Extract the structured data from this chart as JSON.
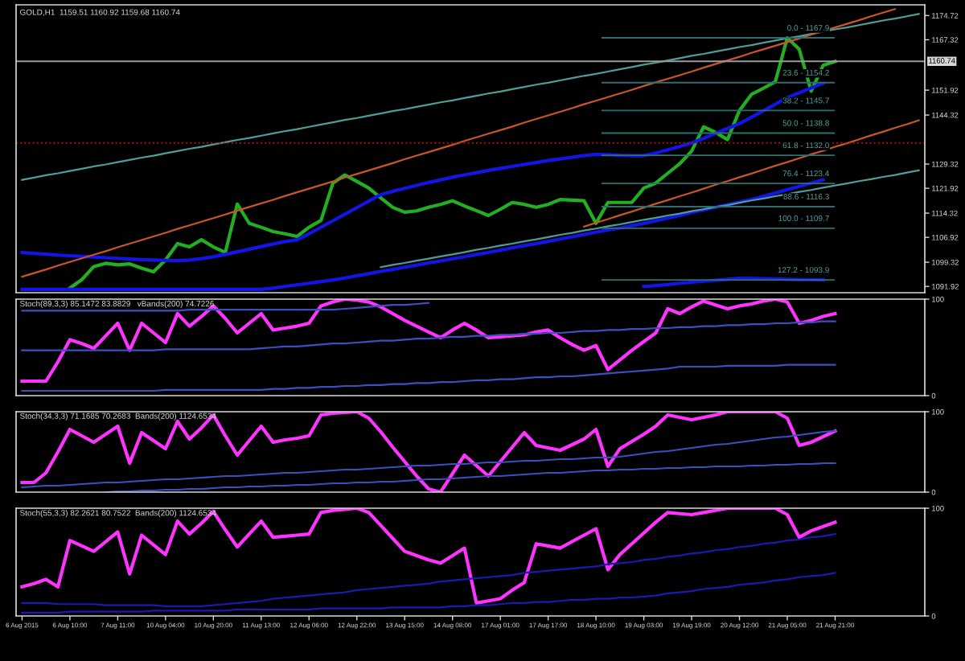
{
  "chart_data": [
    {
      "type": "line",
      "title": "GOLD,H1  1159.51 1160.92 1159.68 1160.74",
      "ylim": [
        1090,
        1178
      ],
      "categories": [
        null,
        null,
        null,
        null,
        null,
        null,
        null,
        null,
        null,
        null,
        null,
        null,
        null,
        null,
        null,
        null,
        null,
        null,
        null,
        null,
        null,
        null,
        null,
        null,
        null,
        null,
        null,
        null,
        null,
        null,
        null,
        null,
        null,
        null,
        null,
        null,
        null,
        null,
        null,
        null,
        null,
        null,
        null,
        null,
        null,
        null,
        null,
        null,
        null,
        null,
        null,
        null,
        null,
        null,
        null,
        null,
        null,
        null,
        null,
        null,
        null,
        null,
        null,
        null,
        null,
        null,
        null,
        null,
        null,
        null,
        null,
        null,
        null,
        null,
        null,
        null
      ],
      "yticks": [
        1091.92,
        1099.32,
        1106.92,
        1114.32,
        1121.92,
        1129.32,
        1144.32,
        1151.92,
        1167.32,
        1174.72
      ],
      "tick_labels": "y",
      "series": [
        {
          "color": "#22b022",
          "values": [
            null,
            null,
            null,
            null,
            1091.4,
            1094.0,
            1098.0,
            1099.0,
            1098.5,
            1098.8,
            1097.5,
            1096.4,
            1100.0,
            1105.0,
            1104.0,
            1106.2,
            1104.0,
            1102.3,
            1117.1,
            1111.2,
            1110.0,
            1108.7,
            1108.0,
            1107.2,
            1110.0,
            1112.1,
            1123.5,
            1126.0,
            1124.0,
            1122.0,
            1119.0,
            1116.1,
            1114.6,
            1115.0,
            1116.1,
            1117.0,
            1118.1,
            1116.5,
            1115.1,
            1113.6,
            1115.5,
            1117.6,
            1117.0,
            1116.1,
            1117.0,
            1118.5,
            1118.3,
            1118.1,
            1111.2,
            1117.6,
            1117.6,
            1117.6,
            1122.0,
            1123.5,
            1126.5,
            1129.4,
            1133.3,
            1140.7,
            1139.0,
            1136.8,
            1145.7,
            1150.6,
            1152.5,
            1154.5,
            1167.9,
            1164.4,
            1151.6,
            1159.5,
            1160.7,
            null,
            null,
            null,
            null,
            null,
            null,
            null
          ]
        },
        {
          "color": "#1414e6",
          "values": [
            1102.3,
            1102.0,
            1101.8,
            1101.5,
            1101.3,
            1101.1,
            1100.9,
            1100.7,
            1100.5,
            1100.3,
            1100.1,
            1100.0,
            1099.9,
            1099.8,
            1100.0,
            1100.4,
            1101.0,
            1101.7,
            1102.5,
            1103.3,
            1104.1,
            1104.9,
            1105.6,
            1106.2,
            1108.0,
            1110.0,
            1112.0,
            1114.0,
            1116.0,
            1118.0,
            1120.0,
            1121.0,
            1121.9,
            1122.8,
            1123.7,
            1124.5,
            1125.3,
            1126.0,
            1126.7,
            1127.4,
            1128.0,
            1128.6,
            1129.2,
            1129.8,
            1130.4,
            1130.9,
            1131.4,
            1131.9,
            1132.3,
            1132.2,
            1132.0,
            1131.9,
            1131.9,
            1132.7,
            1133.7,
            1134.7,
            1135.8,
            1137.2,
            1138.7,
            1140.2,
            1141.7,
            1143.6,
            1145.6,
            1147.6,
            1149.6,
            1151.1,
            1152.6,
            1154.0,
            null,
            null,
            null,
            null,
            null,
            null,
            null,
            null
          ]
        },
        {
          "color": "#1414e6",
          "values": [
            1091.0,
            1091.0,
            1091.0,
            1091.0,
            1091.0,
            1091.0,
            1091.0,
            1091.0,
            1091.0,
            1091.0,
            1091.0,
            1091.0,
            1091.0,
            1091.0,
            1091.0,
            1091.0,
            1091.0,
            1091.0,
            1091.0,
            1091.0,
            1091.0,
            1091.4,
            1091.9,
            1092.4,
            1092.9,
            1093.4,
            1093.9,
            1094.5,
            1095.2,
            1095.8,
            1096.5,
            1097.1,
            1097.8,
            1098.4,
            1099.1,
            1099.7,
            1100.4,
            1101.0,
            1101.7,
            1102.3,
            1103.0,
            1103.7,
            1104.4,
            1105.0,
            1105.7,
            1106.4,
            1107.1,
            1107.8,
            1108.5,
            1109.2,
            1109.8,
            1110.5,
            1111.2,
            1112.0,
            1112.8,
            1113.6,
            1114.5,
            1115.3,
            1116.1,
            1116.9,
            1117.7,
            1118.5,
            1119.5,
            1120.5,
            1121.5,
            1122.5,
            1123.5,
            1124.5,
            null,
            null,
            null,
            null,
            null,
            null,
            null,
            null
          ]
        },
        {
          "color": "#1414e6",
          "values": [
            null,
            null,
            null,
            null,
            null,
            null,
            null,
            null,
            null,
            null,
            null,
            null,
            null,
            null,
            null,
            null,
            null,
            null,
            null,
            null,
            null,
            null,
            null,
            null,
            null,
            null,
            null,
            null,
            null,
            null,
            null,
            null,
            null,
            null,
            null,
            null,
            null,
            null,
            null,
            null,
            null,
            null,
            null,
            null,
            null,
            null,
            null,
            null,
            null,
            null,
            null,
            null,
            1091.9,
            1092.2,
            1092.5,
            1092.9,
            1093.2,
            1093.5,
            1093.8,
            1094.1,
            1094.4,
            1094.4,
            1094.3,
            1094.2,
            1094.1,
            1094.0,
            1094.0,
            1093.9,
            null,
            null,
            null,
            null,
            null,
            null,
            null,
            null
          ]
        },
        {
          "color": "#4f9d98",
          "values": [
            1124.5,
            1125.2,
            1125.9,
            1126.5,
            1127.2,
            1127.9,
            1128.6,
            1129.2,
            1129.9,
            1130.6,
            1131.3,
            1131.9,
            1132.6,
            1133.3,
            1134.0,
            1134.6,
            1135.3,
            1136.0,
            1136.7,
            1137.3,
            1138.0,
            1138.7,
            1139.4,
            1140.0,
            1140.7,
            1141.4,
            1142.1,
            1142.8,
            1143.4,
            1144.1,
            1144.8,
            1145.5,
            1146.1,
            1146.8,
            1147.5,
            1148.2,
            1148.8,
            1149.5,
            1150.2,
            1150.9,
            1151.5,
            1152.2,
            1152.9,
            1153.6,
            1154.2,
            1154.9,
            1155.6,
            1156.3,
            1156.9,
            1157.6,
            1158.3,
            1159.0,
            1159.7,
            1160.3,
            1161.0,
            1161.7,
            1162.4,
            1163.0,
            1163.7,
            1164.4,
            1165.1,
            1165.7,
            1166.4,
            1167.1,
            1167.8,
            1168.4,
            1169.1,
            1169.8,
            1170.5,
            1171.1,
            1171.8,
            1172.5,
            1173.2,
            1173.8,
            1174.5,
            1175.2
          ]
        },
        {
          "color": "#4f9d98",
          "values": [
            null,
            null,
            null,
            null,
            null,
            null,
            null,
            null,
            null,
            null,
            null,
            null,
            null,
            null,
            null,
            null,
            null,
            null,
            null,
            null,
            null,
            null,
            null,
            null,
            null,
            null,
            null,
            null,
            null,
            null,
            1097.8,
            1098.5,
            1099.1,
            1099.8,
            1100.4,
            1101.1,
            1101.7,
            1102.4,
            1103.1,
            1103.7,
            1104.4,
            1105.0,
            1105.7,
            1106.3,
            1107.0,
            1107.7,
            1108.3,
            1109.0,
            1109.6,
            1110.3,
            1110.9,
            1111.6,
            1112.3,
            1112.9,
            1113.6,
            1114.2,
            1114.9,
            1115.5,
            1116.2,
            1116.8,
            1117.5,
            1118.2,
            1118.8,
            1119.5,
            1120.1,
            1120.8,
            1121.4,
            1122.1,
            1122.8,
            1123.4,
            1124.1,
            1124.7,
            1125.4,
            1126.0,
            1126.7,
            1127.4
          ]
        },
        {
          "color": "#c8552d",
          "values": [
            1094.9,
            1096.0,
            1097.1,
            1098.3,
            1099.4,
            1100.5,
            1101.6,
            1102.7,
            1103.9,
            1105.0,
            1106.1,
            1107.2,
            1108.3,
            1109.5,
            1110.6,
            1111.7,
            1112.8,
            1113.9,
            1115.1,
            1116.2,
            1117.3,
            1118.4,
            1119.6,
            1120.7,
            1121.8,
            1122.9,
            1124.0,
            1125.2,
            1126.3,
            1127.4,
            1128.5,
            1129.6,
            1130.8,
            1131.9,
            1133.0,
            1134.1,
            1135.2,
            1136.4,
            1137.5,
            1138.6,
            1139.7,
            1140.8,
            1142.0,
            1143.1,
            1144.2,
            1145.3,
            1146.4,
            1147.6,
            1148.7,
            1149.8,
            1150.9,
            1152.0,
            1153.2,
            1154.3,
            1155.4,
            1156.5,
            1157.6,
            1158.8,
            1159.9,
            1161.0,
            1162.1,
            1163.3,
            1164.4,
            1165.5,
            1166.6,
            1167.7,
            1168.9,
            1170.0,
            1171.1,
            1172.2,
            1173.3,
            1174.5,
            1175.6,
            1176.7,
            null,
            null
          ]
        },
        {
          "color": "#c8552d",
          "values": [
            null,
            null,
            null,
            null,
            null,
            null,
            null,
            null,
            null,
            null,
            null,
            null,
            null,
            null,
            null,
            null,
            null,
            null,
            null,
            null,
            null,
            null,
            null,
            null,
            null,
            null,
            null,
            null,
            null,
            null,
            null,
            null,
            null,
            null,
            null,
            null,
            null,
            null,
            null,
            null,
            null,
            null,
            null,
            null,
            null,
            null,
            null,
            1110.2,
            1111.4,
            1112.5,
            1113.7,
            1114.8,
            1116.0,
            1117.2,
            1118.3,
            1119.5,
            1120.6,
            1121.8,
            1123.0,
            1124.1,
            1125.3,
            1126.4,
            1127.6,
            1128.8,
            1129.9,
            1131.1,
            1132.3,
            1133.4,
            1134.6,
            1135.7,
            1136.9,
            1138.1,
            1139.2,
            1140.4,
            1141.5,
            1142.7
          ]
        }
      ],
      "ref_lines": [
        {
          "axis": "y",
          "value": 1160.74,
          "label": "1160.74",
          "color": "#9a9a9a",
          "line_style": "solid"
        },
        {
          "axis": "y",
          "value": 1135.8,
          "label": null,
          "color": "#b01010",
          "line_style": "dotted"
        },
        {
          "axis": "y",
          "value": 1167.9,
          "label": null,
          "color": "#2e6e6e",
          "line_style": "solid"
        },
        {
          "axis": "y",
          "value": 1154.2,
          "label": null,
          "color": "#2e6e6e",
          "line_style": "solid"
        },
        {
          "axis": "y",
          "value": 1145.7,
          "label": null,
          "color": "#2e6e6e",
          "line_style": "solid"
        },
        {
          "axis": "y",
          "value": 1138.8,
          "label": null,
          "color": "#2e6e6e",
          "line_style": "solid"
        },
        {
          "axis": "y",
          "value": 1132.0,
          "label": null,
          "color": "#2e6e6e",
          "line_style": "solid"
        },
        {
          "axis": "y",
          "value": 1123.4,
          "label": null,
          "color": "#2e6e6e",
          "line_style": "solid"
        },
        {
          "axis": "y",
          "value": 1116.3,
          "label": null,
          "color": "#2e6e6e",
          "line_style": "solid"
        },
        {
          "axis": "y",
          "value": 1109.7,
          "label": null,
          "color": "#2e6e6e",
          "line_style": "solid"
        },
        {
          "axis": "y",
          "value": 1093.9,
          "label": null,
          "color": "#2e6e6e",
          "line_style": "solid"
        }
      ],
      "annotations": [
        {
          "text": "0.0 - 1167.9",
          "y": 1167.9
        },
        {
          "text": "23.6 - 1154.2",
          "y": 1154.2
        },
        {
          "text": "38.2 - 1145.7",
          "y": 1145.7
        },
        {
          "text": "50.0 - 1138.8",
          "y": 1138.8
        },
        {
          "text": "61.8 - 1132.0",
          "y": 1132.0
        },
        {
          "text": "76.4 - 1123.4",
          "y": 1123.4
        },
        {
          "text": "88.6 - 1116.3",
          "y": 1116.3
        },
        {
          "text": "100.0 - 1109.7",
          "y": 1109.7
        },
        {
          "text": "127.2 - 1093.9",
          "y": 1093.9
        }
      ]
    },
    {
      "type": "line",
      "title": "Stoch(89,3,3) 85.1472 83.8829   vBands(200) 74.7226",
      "ylim": [
        0,
        100
      ],
      "yticks": [
        0,
        100
      ],
      "tick_labels": "y",
      "categories": [
        null,
        null,
        null,
        null,
        null,
        null,
        null,
        null,
        null,
        null,
        null,
        null,
        null,
        null,
        null,
        null,
        null,
        null,
        null,
        null,
        null,
        null,
        null,
        null,
        null,
        null,
        null,
        null,
        null,
        null,
        null,
        null,
        null,
        null,
        null,
        null,
        null,
        null,
        null,
        null,
        null,
        null,
        null,
        null,
        null,
        null,
        null,
        null,
        null,
        null,
        null,
        null,
        null,
        null,
        null,
        null,
        null,
        null,
        null,
        null,
        null,
        null,
        null,
        null,
        null,
        null,
        null,
        null,
        null,
        null,
        null,
        null,
        null,
        null,
        null,
        null
      ],
      "series": [
        {
          "color": "#ff33ff",
          "values": [
            15,
            15,
            15,
            35,
            58,
            54,
            49,
            62,
            75,
            47,
            75,
            65,
            55,
            85,
            72,
            82,
            93,
            80,
            65,
            75,
            85,
            68,
            70,
            72,
            75,
            93,
            97,
            100,
            99,
            97,
            92,
            85,
            78,
            72,
            66,
            60,
            68,
            75,
            68,
            60,
            61,
            62,
            63,
            66,
            68,
            60,
            53,
            47,
            52,
            27,
            37,
            47,
            56,
            65,
            90,
            85,
            92,
            98,
            94,
            90,
            93,
            95,
            98,
            100,
            97,
            75,
            78,
            82,
            85,
            null,
            null,
            null,
            null,
            null,
            null,
            null
          ]
        },
        {
          "color": "#3b4fc0",
          "values": [
            47,
            47,
            47,
            47,
            47,
            47,
            47,
            47,
            47,
            47,
            47,
            47,
            48,
            48,
            48,
            48,
            48,
            48,
            48,
            48,
            49,
            50,
            51,
            51,
            52,
            53,
            54,
            54,
            55,
            56,
            57,
            57,
            58,
            59,
            59,
            60,
            61,
            61,
            62,
            62,
            63,
            63,
            64,
            64,
            65,
            65,
            66,
            67,
            67,
            68,
            68,
            69,
            69,
            70,
            70,
            71,
            71,
            72,
            72,
            73,
            73,
            74,
            74,
            75,
            75,
            76,
            76,
            77,
            77,
            null,
            null,
            null,
            null,
            null,
            null,
            null
          ]
        },
        {
          "color": "#3b4fc0",
          "values": [
            5,
            5,
            5,
            5,
            5,
            5,
            5,
            5,
            5,
            5,
            5,
            5,
            6,
            6,
            6,
            6,
            6,
            6,
            6,
            6,
            6,
            7,
            7,
            8,
            8,
            9,
            9,
            10,
            10,
            11,
            11,
            12,
            12,
            13,
            13,
            14,
            14,
            15,
            16,
            16,
            17,
            17,
            18,
            19,
            19,
            20,
            20,
            21,
            22,
            23,
            24,
            25,
            26,
            27,
            28,
            30,
            30,
            30,
            30,
            31,
            31,
            31,
            31,
            31,
            32,
            32,
            32,
            32,
            32,
            null,
            null,
            null,
            null,
            null,
            null,
            null
          ]
        },
        {
          "color": "#3b4fc0",
          "values": [
            88,
            88,
            88,
            88,
            88,
            88,
            88,
            88,
            88,
            88,
            88,
            88,
            88,
            88,
            89,
            89,
            89,
            89,
            89,
            89,
            89,
            89,
            89,
            89,
            89,
            89,
            89,
            90,
            91,
            92,
            93,
            94,
            94,
            95,
            96,
            null,
            null,
            null,
            null,
            null,
            null,
            null,
            null,
            null,
            null,
            null,
            null,
            null,
            null,
            null,
            null,
            null,
            null,
            null,
            null,
            null,
            null,
            null,
            null,
            null,
            null,
            null,
            null,
            null,
            null,
            null,
            null,
            null,
            null,
            null,
            null,
            null,
            null,
            null,
            null,
            null
          ]
        }
      ]
    },
    {
      "type": "line",
      "title": "Stoch(34,3,3) 71.1685 70.2683  Bands(200) 1124.6534",
      "ylim": [
        0,
        100
      ],
      "yticks": [
        0,
        100
      ],
      "tick_labels": "y",
      "categories": [
        null,
        null,
        null,
        null,
        null,
        null,
        null,
        null,
        null,
        null,
        null,
        null,
        null,
        null,
        null,
        null,
        null,
        null,
        null,
        null,
        null,
        null,
        null,
        null,
        null,
        null,
        null,
        null,
        null,
        null,
        null,
        null,
        null,
        null,
        null,
        null,
        null,
        null,
        null,
        null,
        null,
        null,
        null,
        null,
        null,
        null,
        null,
        null,
        null,
        null,
        null,
        null,
        null,
        null,
        null,
        null,
        null,
        null,
        null,
        null,
        null,
        null,
        null,
        null,
        null,
        null,
        null,
        null,
        null,
        null,
        null,
        null,
        null,
        null,
        null,
        null
      ],
      "series": [
        {
          "color": "#ff33ff",
          "values": [
            12,
            12,
            24,
            50,
            78,
            70,
            62,
            72,
            82,
            36,
            74,
            64,
            54,
            88,
            66,
            80,
            96,
            70,
            46,
            64,
            82,
            62,
            65,
            67,
            70,
            96,
            98,
            99,
            100,
            92,
            75,
            56,
            38,
            20,
            4,
            0,
            23,
            46,
            33,
            20,
            38,
            56,
            74,
            58,
            55,
            52,
            59,
            66,
            78,
            32,
            54,
            63,
            72,
            82,
            96,
            93,
            90,
            93,
            96,
            100,
            100,
            100,
            100,
            100,
            92,
            58,
            62,
            69,
            76,
            null,
            null,
            null,
            null,
            null,
            null,
            null
          ]
        },
        {
          "color": "#3b4fc0",
          "values": [
            6,
            7,
            8,
            8,
            9,
            10,
            11,
            12,
            12,
            13,
            14,
            15,
            16,
            16,
            17,
            18,
            19,
            20,
            20,
            21,
            22,
            23,
            24,
            24,
            25,
            26,
            27,
            28,
            28,
            29,
            30,
            31,
            32,
            33,
            33,
            34,
            35,
            35,
            36,
            37,
            37,
            38,
            39,
            39,
            40,
            41,
            41,
            42,
            43,
            43,
            44,
            46,
            48,
            50,
            51,
            53,
            55,
            57,
            59,
            60,
            62,
            64,
            66,
            68,
            69,
            71,
            73,
            75,
            76,
            null,
            null,
            null,
            null,
            null,
            null,
            null
          ]
        },
        {
          "color": "#3b4fc0",
          "values": [
            null,
            null,
            null,
            null,
            null,
            null,
            null,
            0,
            1,
            1,
            2,
            2,
            3,
            3,
            4,
            4,
            5,
            6,
            6,
            7,
            7,
            8,
            8,
            9,
            9,
            10,
            11,
            11,
            12,
            12,
            13,
            13,
            14,
            15,
            16,
            16,
            17,
            18,
            19,
            20,
            20,
            21,
            22,
            23,
            24,
            24,
            25,
            26,
            27,
            27,
            28,
            28,
            29,
            29,
            30,
            30,
            31,
            31,
            32,
            32,
            32,
            33,
            33,
            34,
            34,
            35,
            35,
            36,
            36,
            null,
            null,
            null,
            null,
            null,
            null,
            null
          ]
        }
      ]
    },
    {
      "type": "line",
      "title": "Stoch(55,3,3) 82.2621 80.7522  Bands(200) 1124.6534",
      "ylim": [
        0,
        100
      ],
      "yticks": [
        0,
        100
      ],
      "categories": [
        "6 Aug 2015",
        null,
        null,
        null,
        "6 Aug 10:00",
        null,
        null,
        null,
        "7 Aug 11:00",
        null,
        null,
        null,
        "10 Aug 04:00",
        null,
        null,
        null,
        "10 Aug 20:00",
        null,
        null,
        null,
        "11 Aug 13:00",
        null,
        null,
        null,
        "12 Aug 06:00",
        null,
        null,
        null,
        "12 Aug 22:00",
        null,
        null,
        null,
        "13 Aug 15:00",
        null,
        null,
        null,
        "14 Aug 08:00",
        null,
        null,
        null,
        "17 Aug 01:00",
        null,
        null,
        null,
        "17 Aug 17:00",
        null,
        null,
        null,
        "18 Aug 10:00",
        null,
        null,
        null,
        "19 Aug 03:00",
        null,
        null,
        null,
        "19 Aug 19:00",
        null,
        null,
        null,
        "20 Aug 12:00",
        null,
        null,
        null,
        "21 Aug 05:00",
        null,
        null,
        null,
        "21 Aug 21:00",
        null,
        null,
        null,
        null,
        null,
        null,
        null
      ],
      "series": [
        {
          "color": "#ff33ff",
          "values": [
            27,
            30,
            34,
            27,
            70,
            65,
            60,
            69,
            78,
            39,
            75,
            66,
            57,
            88,
            76,
            86,
            97,
            80,
            64,
            76,
            88,
            73,
            74,
            75,
            76,
            96,
            98,
            99,
            100,
            96,
            84,
            72,
            60,
            56,
            52,
            49,
            56,
            63,
            12,
            14,
            16,
            24,
            31,
            67,
            65,
            63,
            69,
            75,
            81,
            43,
            57,
            67,
            77,
            87,
            96,
            95,
            94,
            96,
            98,
            100,
            100,
            100,
            100,
            100,
            94,
            73,
            79,
            83,
            87,
            null,
            null,
            null,
            null,
            null,
            null,
            null
          ]
        },
        {
          "color": "#1a1ab0",
          "values": [
            12,
            12,
            12,
            11,
            11,
            11,
            11,
            10,
            10,
            10,
            10,
            10,
            9,
            9,
            9,
            9,
            10,
            11,
            12,
            13,
            14,
            16,
            17,
            18,
            19,
            20,
            21,
            22,
            24,
            25,
            26,
            27,
            28,
            29,
            30,
            32,
            33,
            34,
            35,
            36,
            37,
            38,
            40,
            41,
            42,
            43,
            44,
            45,
            46,
            48,
            49,
            50,
            52,
            53,
            55,
            56,
            58,
            59,
            61,
            62,
            64,
            65,
            67,
            68,
            70,
            71,
            73,
            74,
            76,
            null,
            null,
            null,
            null,
            null,
            null,
            null
          ]
        },
        {
          "color": "#1a1ab0",
          "values": [
            3,
            3,
            3,
            3,
            4,
            4,
            4,
            4,
            4,
            4,
            4,
            5,
            5,
            5,
            5,
            5,
            5,
            5,
            6,
            6,
            6,
            6,
            6,
            6,
            6,
            7,
            7,
            7,
            7,
            7,
            7,
            8,
            8,
            8,
            8,
            8,
            9,
            9,
            10,
            10,
            11,
            12,
            12,
            13,
            13,
            14,
            15,
            15,
            16,
            16,
            17,
            17,
            18,
            19,
            21,
            22,
            23,
            25,
            26,
            27,
            29,
            30,
            31,
            33,
            34,
            36,
            37,
            38,
            40,
            null,
            null,
            null,
            null,
            null,
            null,
            null
          ]
        }
      ]
    }
  ]
}
